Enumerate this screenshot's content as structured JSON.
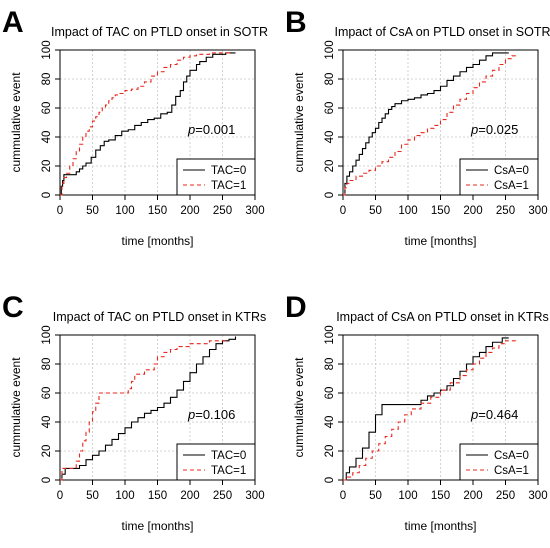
{
  "chart_data": [
    {
      "type": "line",
      "panel_letter": "A",
      "title": "Impact of TAC on PTLD onset in SOTR",
      "xlabel": "time [months]",
      "ylabel": "cummulative event",
      "xlim": [
        0,
        300
      ],
      "ylim": [
        0,
        100
      ],
      "xticks": [
        "0",
        "50",
        "100",
        "150",
        "200",
        "250",
        "300"
      ],
      "yticks": [
        "0",
        "20",
        "40",
        "60",
        "80",
        "100"
      ],
      "grid": true,
      "legend_position": "bottom-right",
      "annotation": "p=0.001",
      "series": [
        {
          "name": "TAC=0",
          "color": "#000000",
          "dash": "solid",
          "points": [
            [
              0,
              0
            ],
            [
              2,
              6
            ],
            [
              4,
              10
            ],
            [
              6,
              14
            ],
            [
              20,
              14
            ],
            [
              25,
              16
            ],
            [
              30,
              18
            ],
            [
              35,
              20
            ],
            [
              40,
              22
            ],
            [
              48,
              26
            ],
            [
              55,
              31
            ],
            [
              62,
              34
            ],
            [
              68,
              37
            ],
            [
              75,
              38
            ],
            [
              85,
              41
            ],
            [
              95,
              44
            ],
            [
              105,
              45
            ],
            [
              115,
              48
            ],
            [
              125,
              50
            ],
            [
              135,
              52
            ],
            [
              145,
              53
            ],
            [
              155,
              56
            ],
            [
              165,
              57
            ],
            [
              172,
              62
            ],
            [
              178,
              68
            ],
            [
              185,
              72
            ],
            [
              190,
              78
            ],
            [
              195,
              82
            ],
            [
              200,
              86
            ],
            [
              210,
              90
            ],
            [
              215,
              92
            ],
            [
              225,
              95
            ],
            [
              235,
              97
            ],
            [
              255,
              98
            ],
            [
              265,
              98
            ],
            [
              270,
              98
            ]
          ]
        },
        {
          "name": "TAC=1",
          "color": "#e8281c",
          "dash": "dashed",
          "points": [
            [
              0,
              0
            ],
            [
              3,
              8
            ],
            [
              6,
              12
            ],
            [
              10,
              15
            ],
            [
              15,
              20
            ],
            [
              20,
              25
            ],
            [
              25,
              30
            ],
            [
              30,
              35
            ],
            [
              35,
              40
            ],
            [
              40,
              44
            ],
            [
              45,
              47
            ],
            [
              50,
              51
            ],
            [
              55,
              54
            ],
            [
              60,
              57
            ],
            [
              65,
              60
            ],
            [
              70,
              62
            ],
            [
              75,
              65
            ],
            [
              80,
              67
            ],
            [
              85,
              69
            ],
            [
              90,
              70
            ],
            [
              100,
              72
            ],
            [
              110,
              73
            ],
            [
              120,
              75
            ],
            [
              130,
              78
            ],
            [
              140,
              82
            ],
            [
              150,
              85
            ],
            [
              160,
              88
            ],
            [
              170,
              90
            ],
            [
              180,
              93
            ],
            [
              190,
              95
            ],
            [
              200,
              96
            ],
            [
              210,
              97
            ],
            [
              230,
              98
            ],
            [
              250,
              98
            ],
            [
              265,
              98
            ]
          ]
        }
      ]
    },
    {
      "type": "line",
      "panel_letter": "B",
      "title": "Impact of CsA on PTLD onset in SOTR",
      "xlabel": "time [months]",
      "ylabel": "cummulative event",
      "xlim": [
        0,
        300
      ],
      "ylim": [
        0,
        100
      ],
      "xticks": [
        "0",
        "50",
        "100",
        "150",
        "200",
        "250",
        "300"
      ],
      "yticks": [
        "0",
        "20",
        "40",
        "60",
        "80",
        "100"
      ],
      "grid": true,
      "legend_position": "bottom-right",
      "annotation": "p=0.025",
      "series": [
        {
          "name": "CsA=0",
          "color": "#000000",
          "dash": "solid",
          "points": [
            [
              0,
              0
            ],
            [
              3,
              8
            ],
            [
              6,
              13
            ],
            [
              10,
              16
            ],
            [
              15,
              20
            ],
            [
              20,
              24
            ],
            [
              25,
              28
            ],
            [
              30,
              32
            ],
            [
              35,
              36
            ],
            [
              40,
              40
            ],
            [
              45,
              43
            ],
            [
              50,
              46
            ],
            [
              55,
              50
            ],
            [
              60,
              53
            ],
            [
              65,
              56
            ],
            [
              70,
              59
            ],
            [
              75,
              61
            ],
            [
              80,
              63
            ],
            [
              90,
              65
            ],
            [
              100,
              66
            ],
            [
              110,
              67
            ],
            [
              120,
              69
            ],
            [
              130,
              70
            ],
            [
              140,
              72
            ],
            [
              150,
              75
            ],
            [
              160,
              79
            ],
            [
              170,
              82
            ],
            [
              180,
              85
            ],
            [
              190,
              88
            ],
            [
              200,
              90
            ],
            [
              210,
              93
            ],
            [
              220,
              96
            ],
            [
              230,
              98
            ],
            [
              250,
              98
            ],
            [
              255,
              98
            ]
          ]
        },
        {
          "name": "CsA=1",
          "color": "#e8281c",
          "dash": "dashed",
          "points": [
            [
              0,
              0
            ],
            [
              3,
              5
            ],
            [
              6,
              8
            ],
            [
              10,
              10
            ],
            [
              20,
              13
            ],
            [
              30,
              15
            ],
            [
              40,
              17
            ],
            [
              50,
              20
            ],
            [
              60,
              23
            ],
            [
              70,
              26
            ],
            [
              80,
              30
            ],
            [
              90,
              35
            ],
            [
              100,
              38
            ],
            [
              110,
              41
            ],
            [
              120,
              43
            ],
            [
              130,
              46
            ],
            [
              140,
              48
            ],
            [
              150,
              52
            ],
            [
              160,
              57
            ],
            [
              170,
              62
            ],
            [
              180,
              66
            ],
            [
              190,
              70
            ],
            [
              200,
              74
            ],
            [
              210,
              78
            ],
            [
              220,
              82
            ],
            [
              230,
              86
            ],
            [
              240,
              90
            ],
            [
              250,
              94
            ],
            [
              260,
              96
            ],
            [
              265,
              98
            ]
          ]
        }
      ]
    },
    {
      "type": "line",
      "panel_letter": "C",
      "title": "Impact of TAC on PTLD onset in KTRs",
      "xlabel": "time [months]",
      "ylabel": "cummulative event",
      "xlim": [
        0,
        300
      ],
      "ylim": [
        0,
        100
      ],
      "xticks": [
        "0",
        "50",
        "100",
        "150",
        "200",
        "250",
        "300"
      ],
      "yticks": [
        "0",
        "20",
        "40",
        "60",
        "80",
        "100"
      ],
      "grid": true,
      "legend_position": "bottom-right",
      "annotation": "p=0.106",
      "series": [
        {
          "name": "TAC=0",
          "color": "#000000",
          "dash": "solid",
          "points": [
            [
              0,
              0
            ],
            [
              3,
              4
            ],
            [
              8,
              8
            ],
            [
              25,
              8
            ],
            [
              30,
              10
            ],
            [
              40,
              14
            ],
            [
              50,
              17
            ],
            [
              60,
              20
            ],
            [
              70,
              24
            ],
            [
              80,
              28
            ],
            [
              90,
              32
            ],
            [
              100,
              36
            ],
            [
              110,
              40
            ],
            [
              120,
              43
            ],
            [
              130,
              46
            ],
            [
              140,
              48
            ],
            [
              150,
              50
            ],
            [
              160,
              53
            ],
            [
              170,
              57
            ],
            [
              180,
              62
            ],
            [
              190,
              68
            ],
            [
              200,
              74
            ],
            [
              210,
              80
            ],
            [
              220,
              85
            ],
            [
              230,
              90
            ],
            [
              240,
              94
            ],
            [
              250,
              96
            ],
            [
              260,
              97
            ],
            [
              270,
              99
            ]
          ]
        },
        {
          "name": "TAC=1",
          "color": "#e8281c",
          "dash": "dashed",
          "points": [
            [
              0,
              0
            ],
            [
              3,
              8
            ],
            [
              20,
              8
            ],
            [
              25,
              13
            ],
            [
              30,
              20
            ],
            [
              35,
              27
            ],
            [
              40,
              33
            ],
            [
              45,
              40
            ],
            [
              50,
              47
            ],
            [
              55,
              53
            ],
            [
              60,
              60
            ],
            [
              100,
              60
            ],
            [
              105,
              63
            ],
            [
              110,
              68
            ],
            [
              115,
              73
            ],
            [
              120,
              73
            ],
            [
              130,
              76
            ],
            [
              140,
              76
            ],
            [
              145,
              80
            ],
            [
              150,
              85
            ],
            [
              160,
              88
            ],
            [
              170,
              90
            ],
            [
              180,
              92
            ],
            [
              200,
              94
            ],
            [
              230,
              96
            ],
            [
              260,
              96
            ]
          ]
        }
      ]
    },
    {
      "type": "line",
      "panel_letter": "D",
      "title": "Impact of CsA on PTLD onset in KTRs",
      "xlabel": "time [months]",
      "ylabel": "cummulative event",
      "xlim": [
        0,
        300
      ],
      "ylim": [
        0,
        100
      ],
      "xticks": [
        "0",
        "50",
        "100",
        "150",
        "200",
        "250",
        "300"
      ],
      "yticks": [
        "0",
        "20",
        "40",
        "60",
        "80",
        "100"
      ],
      "grid": true,
      "legend_position": "bottom-right",
      "annotation": "p=0.464",
      "series": [
        {
          "name": "CsA=0",
          "color": "#000000",
          "dash": "solid",
          "points": [
            [
              0,
              0
            ],
            [
              5,
              5
            ],
            [
              10,
              9
            ],
            [
              20,
              15
            ],
            [
              30,
              22
            ],
            [
              40,
              33
            ],
            [
              50,
              45
            ],
            [
              60,
              52
            ],
            [
              110,
              52
            ],
            [
              120,
              55
            ],
            [
              130,
              58
            ],
            [
              140,
              60
            ],
            [
              150,
              62
            ],
            [
              160,
              65
            ],
            [
              170,
              70
            ],
            [
              180,
              75
            ],
            [
              190,
              80
            ],
            [
              200,
              85
            ],
            [
              210,
              88
            ],
            [
              220,
              92
            ],
            [
              230,
              95
            ],
            [
              245,
              98
            ],
            [
              255,
              98
            ]
          ]
        },
        {
          "name": "CsA=1",
          "color": "#e8281c",
          "dash": "dashed",
          "points": [
            [
              0,
              0
            ],
            [
              5,
              2
            ],
            [
              15,
              5
            ],
            [
              25,
              10
            ],
            [
              35,
              15
            ],
            [
              45,
              20
            ],
            [
              55,
              25
            ],
            [
              65,
              30
            ],
            [
              75,
              35
            ],
            [
              85,
              40
            ],
            [
              95,
              45
            ],
            [
              105,
              49
            ],
            [
              120,
              53
            ],
            [
              135,
              57
            ],
            [
              150,
              62
            ],
            [
              165,
              67
            ],
            [
              180,
              72
            ],
            [
              190,
              76
            ],
            [
              200,
              80
            ],
            [
              210,
              84
            ],
            [
              220,
              88
            ],
            [
              230,
              91
            ],
            [
              240,
              94
            ],
            [
              250,
              96
            ],
            [
              265,
              98
            ]
          ]
        }
      ]
    }
  ]
}
